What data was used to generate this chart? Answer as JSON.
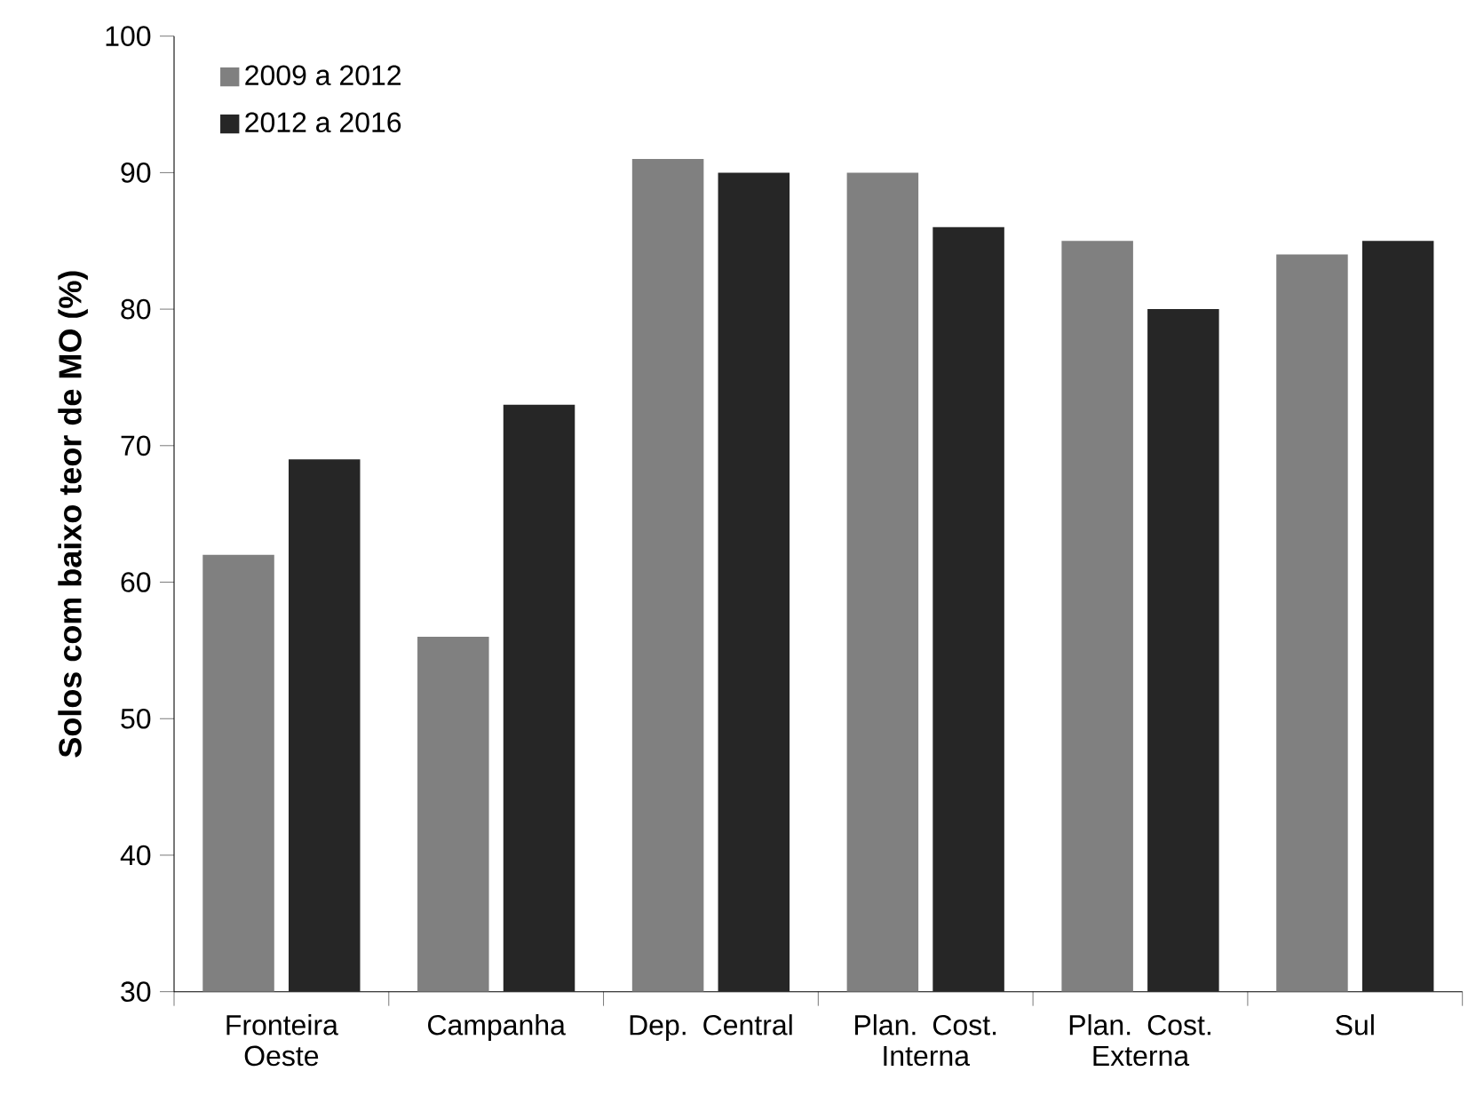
{
  "chart_data": {
    "type": "bar",
    "ylabel": "Solos com baixo teor de MO (%)",
    "categories": [
      "Fronteira Oeste",
      "Campanha",
      "Dep. Central",
      "Plan. Cost. Interna",
      "Plan. Cost. Externa",
      "Sul"
    ],
    "series": [
      {
        "name": "2009 a 2012",
        "color": "#808080",
        "values": [
          62,
          56,
          91,
          90,
          85,
          84
        ]
      },
      {
        "name": "2012 a 2016",
        "color": "#262626",
        "values": [
          69,
          73,
          90,
          86,
          80,
          85
        ]
      }
    ],
    "ylim": [
      30,
      100
    ],
    "yticks": [
      30,
      40,
      50,
      60,
      70,
      80,
      90,
      100
    ],
    "grid": false,
    "legend": "top left"
  }
}
